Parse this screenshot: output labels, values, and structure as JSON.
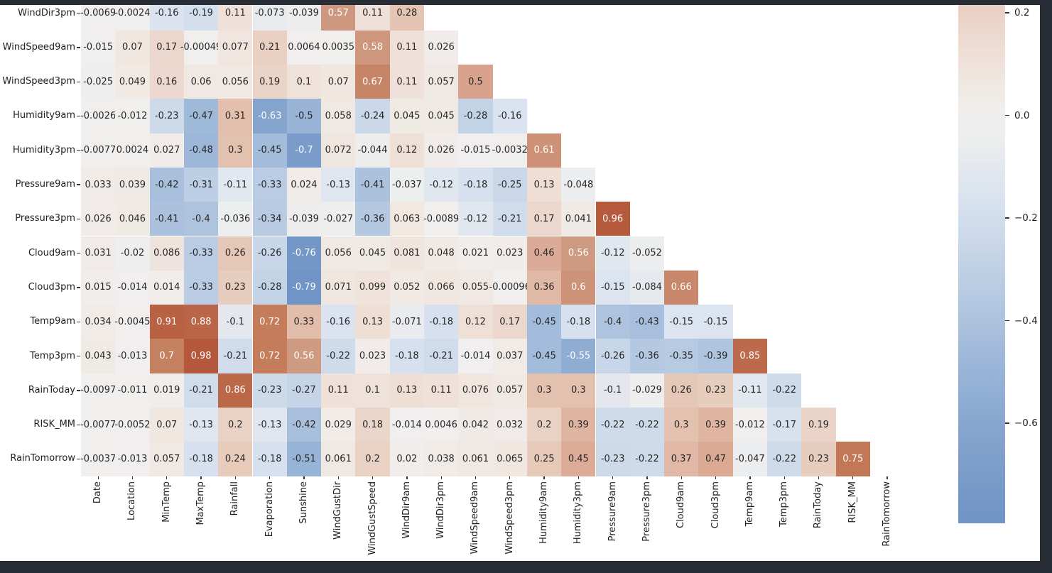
{
  "page": {
    "background_color": "#282c35",
    "figure_background_color": "#ffffff"
  },
  "chart_data": {
    "type": "heatmap",
    "title": "",
    "description": "Lower-triangle correlation matrix heatmap with numeric annotations (upper triangle and diagonal masked). Figure is cropped at the top: only the last 14 rows are visible.",
    "x_categories": [
      "Date",
      "Location",
      "MinTemp",
      "MaxTemp",
      "Rainfall",
      "Evaporation",
      "Sunshine",
      "WindGustDir",
      "WindGustSpeed",
      "WindDir9am",
      "WindDir3pm",
      "WindSpeed9am",
      "WindSpeed3pm",
      "Humidity9am",
      "Humidity3pm",
      "Pressure9am",
      "Pressure3pm",
      "Cloud9am",
      "Cloud3pm",
      "Temp9am",
      "Temp3pm",
      "RainToday",
      "RISK_MM",
      "RainTomorrow"
    ],
    "visible_rows": [
      {
        "label": "WindDir3pm",
        "values": [
          "-0.0069",
          "-0.0024",
          "-0.16",
          "-0.19",
          "0.11",
          "-0.073",
          "-0.039",
          "0.57",
          "0.11",
          "0.28"
        ]
      },
      {
        "label": "WindSpeed9am",
        "values": [
          "-0.015",
          "0.07",
          "0.17",
          "-0.00049",
          "0.077",
          "0.21",
          "0.0064",
          "0.0035",
          "0.58",
          "0.11",
          "0.026"
        ]
      },
      {
        "label": "WindSpeed3pm",
        "values": [
          "-0.025",
          "0.049",
          "0.16",
          "0.06",
          "0.056",
          "0.19",
          "0.1",
          "0.07",
          "0.67",
          "0.11",
          "0.057",
          "0.5"
        ]
      },
      {
        "label": "Humidity9am",
        "values": [
          "-0.0026",
          "-0.012",
          "-0.23",
          "-0.47",
          "0.31",
          "-0.63",
          "-0.5",
          "0.058",
          "-0.24",
          "0.045",
          "0.045",
          "-0.28",
          "-0.16"
        ]
      },
      {
        "label": "Humidity3pm",
        "values": [
          "-0.0077",
          "0.0024",
          "0.027",
          "-0.48",
          "0.3",
          "-0.45",
          "-0.7",
          "0.072",
          "-0.044",
          "0.12",
          "0.026",
          "-0.015",
          "-0.0032",
          "0.61"
        ]
      },
      {
        "label": "Pressure9am",
        "values": [
          "0.033",
          "0.039",
          "-0.42",
          "-0.31",
          "-0.11",
          "-0.33",
          "0.024",
          "-0.13",
          "-0.41",
          "-0.037",
          "-0.12",
          "-0.18",
          "-0.25",
          "0.13",
          "-0.048"
        ]
      },
      {
        "label": "Pressure3pm",
        "values": [
          "0.026",
          "0.046",
          "-0.41",
          "-0.4",
          "-0.036",
          "-0.34",
          "-0.039",
          "-0.027",
          "-0.36",
          "0.063",
          "-0.0089",
          "-0.12",
          "-0.21",
          "0.17",
          "0.041",
          "0.96"
        ]
      },
      {
        "label": "Cloud9am",
        "values": [
          "0.031",
          "-0.02",
          "0.086",
          "-0.33",
          "0.26",
          "-0.26",
          "-0.76",
          "0.056",
          "0.045",
          "0.081",
          "0.048",
          "0.021",
          "0.023",
          "0.46",
          "0.56",
          "-0.12",
          "-0.052"
        ]
      },
      {
        "label": "Cloud3pm",
        "values": [
          "0.015",
          "-0.014",
          "0.014",
          "-0.33",
          "0.23",
          "-0.28",
          "-0.79",
          "0.071",
          "0.099",
          "0.052",
          "0.066",
          "0.055",
          "-0.00096",
          "0.36",
          "0.6",
          "-0.15",
          "-0.084",
          "0.66"
        ]
      },
      {
        "label": "Temp9am",
        "values": [
          "0.034",
          "-0.0045",
          "0.91",
          "0.88",
          "-0.1",
          "0.72",
          "0.33",
          "-0.16",
          "0.13",
          "-0.071",
          "-0.18",
          "0.12",
          "0.17",
          "-0.45",
          "-0.18",
          "-0.4",
          "-0.43",
          "-0.15",
          "-0.15"
        ]
      },
      {
        "label": "Temp3pm",
        "values": [
          "0.043",
          "-0.013",
          "0.7",
          "0.98",
          "-0.21",
          "0.72",
          "0.56",
          "-0.22",
          "0.023",
          "-0.18",
          "-0.21",
          "-0.014",
          "0.037",
          "-0.45",
          "-0.55",
          "-0.26",
          "-0.36",
          "-0.35",
          "-0.39",
          "0.85"
        ]
      },
      {
        "label": "RainToday",
        "values": [
          "-0.0097",
          "-0.011",
          "0.019",
          "-0.21",
          "0.86",
          "-0.23",
          "-0.27",
          "0.11",
          "0.1",
          "0.13",
          "0.11",
          "0.076",
          "0.057",
          "0.3",
          "0.3",
          "-0.1",
          "-0.029",
          "0.26",
          "0.23",
          "-0.11",
          "-0.22"
        ]
      },
      {
        "label": "RISK_MM",
        "values": [
          "-0.0077",
          "-0.0052",
          "0.07",
          "-0.13",
          "0.2",
          "-0.13",
          "-0.42",
          "0.029",
          "0.18",
          "-0.014",
          "0.0046",
          "0.042",
          "0.032",
          "0.2",
          "0.39",
          "-0.22",
          "-0.22",
          "0.3",
          "0.39",
          "-0.012",
          "-0.17",
          "0.19"
        ]
      },
      {
        "label": "RainTomorrow",
        "values": [
          "-0.0037",
          "-0.013",
          "0.057",
          "-0.18",
          "0.24",
          "-0.18",
          "-0.51",
          "0.061",
          "0.2",
          "0.02",
          "0.038",
          "0.061",
          "0.065",
          "0.25",
          "0.45",
          "-0.23",
          "-0.22",
          "0.37",
          "0.47",
          "-0.047",
          "-0.22",
          "0.23",
          "0.75"
        ]
      }
    ],
    "mask": "upper-triangle-including-diagonal",
    "grid": "off",
    "legend_position": "right",
    "colorbar": {
      "tick_labels": [
        "0.2",
        "0.0",
        "−0.2",
        "−0.4",
        "−0.6"
      ],
      "tick_values": [
        0.2,
        0.0,
        -0.2,
        -0.4,
        -0.6
      ],
      "visible_top_value": 0.215,
      "visible_bottom_value": -0.795
    },
    "color_scale": {
      "vmin": -0.79,
      "vmax": 0.98,
      "anchors": [
        {
          "v": -0.79,
          "c": "#6f94c5"
        },
        {
          "v": -0.63,
          "c": "#84a3cd"
        },
        {
          "v": -0.55,
          "c": "#8fadd3"
        },
        {
          "v": -0.42,
          "c": "#a9c0dd"
        },
        {
          "v": -0.31,
          "c": "#bdcfe4"
        },
        {
          "v": -0.16,
          "c": "#dae3ef"
        },
        {
          "v": -0.05,
          "c": "#ecedee"
        },
        {
          "v": 0.0,
          "c": "#f1efee"
        },
        {
          "v": 0.06,
          "c": "#f0e8e2"
        },
        {
          "v": 0.11,
          "c": "#efe1d9"
        },
        {
          "v": 0.28,
          "c": "#e4c4b2"
        },
        {
          "v": 0.46,
          "c": "#dcab97"
        },
        {
          "v": 0.5,
          "c": "#d8a28c"
        },
        {
          "v": 0.56,
          "c": "#cf9a82"
        },
        {
          "v": 0.72,
          "c": "#c47c5b"
        },
        {
          "v": 0.98,
          "c": "#b4573a"
        }
      ],
      "dark_annotation_color": "#262626",
      "light_annotation_color": "#ffffff",
      "white_text_luminance_threshold": 0.408
    }
  }
}
